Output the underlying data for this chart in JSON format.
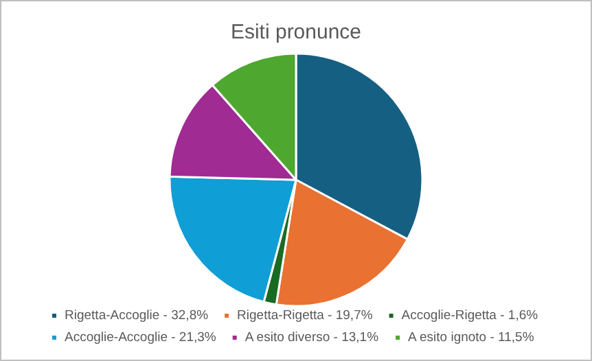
{
  "chart_data": {
    "type": "pie",
    "title": "Esiti pronunce",
    "categories": [
      "Rigetta-Accoglie - 32,8%",
      "Rigetta-Rigetta - 19,7%",
      "Accoglie-Rigetta - 1,6%",
      "Accoglie-Accoglie - 21,3%",
      "A esito diverso - 13,1%",
      "A esito ignoto - 11,5%"
    ],
    "values": [
      32.8,
      19.7,
      1.6,
      21.3,
      13.1,
      11.5
    ],
    "colors": [
      "#156082",
      "#e97132",
      "#196b24",
      "#0f9ed5",
      "#a02b93",
      "#4ea72e"
    ],
    "legend": "bottom"
  }
}
